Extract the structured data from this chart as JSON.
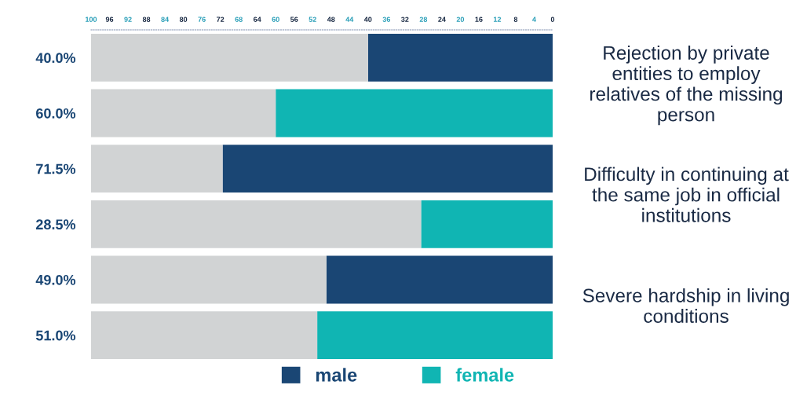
{
  "chart_data": {
    "type": "bar",
    "orientation": "horizontal",
    "stacked": true,
    "categories": [
      "40.0%",
      "60.0%",
      "71.5%",
      "28.5%",
      "49.0%",
      "51.0%"
    ],
    "series": [
      {
        "name": "male",
        "color": "#1a4674",
        "values": [
          40.0,
          null,
          71.5,
          null,
          49.0,
          null
        ]
      },
      {
        "name": "female",
        "color": "#10b5b3",
        "values": [
          null,
          60.0,
          null,
          28.5,
          null,
          51.0
        ]
      },
      {
        "color": "#d1d3d4",
        "values": [
          60.0,
          40.0,
          28.5,
          71.5,
          51.0,
          49.0
        ]
      }
    ],
    "annotations": [
      "Rejection by private entities to employ relatives of the missing person",
      "Difficulty in continuing at the same job in official institutions",
      "Severe hardship in living conditions"
    ],
    "xlim": [
      100,
      0
    ],
    "xticks": [
      100,
      96,
      92,
      88,
      84,
      80,
      76,
      72,
      68,
      64,
      60,
      56,
      52,
      48,
      44,
      40,
      36,
      32,
      28,
      24,
      20,
      16,
      12,
      8,
      4,
      0
    ],
    "grid": false,
    "legend": "bottom"
  }
}
